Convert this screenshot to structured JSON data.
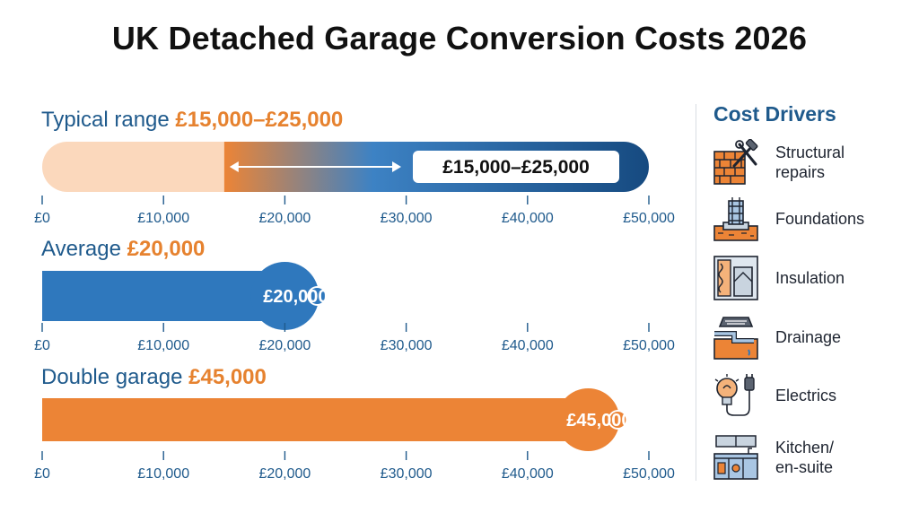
{
  "title": "UK Detached Garage Conversion Costs 2026",
  "colors": {
    "blue": "#2f78bd",
    "dark_blue": "#164a80",
    "orange": "#ec8436",
    "light_orange": "#fbd8bc",
    "text_blue": "#1f5a8c"
  },
  "chart_data": [
    {
      "type": "bar",
      "title_prefix": "Typical range",
      "title_value": "£15,000–£25,000",
      "range": [
        15000,
        25000
      ],
      "bar_extent": [
        0,
        50000
      ],
      "data_label": "£15,000–£25,000",
      "xlim": [
        0,
        50000
      ],
      "ticks": [
        0,
        10000,
        20000,
        30000,
        40000,
        50000
      ],
      "tick_labels": [
        "£0",
        "£10,000",
        "£20,000",
        "£30,000",
        "£40,000",
        "£50,000"
      ]
    },
    {
      "type": "bar",
      "title_prefix": "Average",
      "title_value": "£20,000",
      "value": 20000,
      "data_label": "£20,000",
      "xlim": [
        0,
        50000
      ],
      "ticks": [
        0,
        10000,
        20000,
        30000,
        40000,
        50000
      ],
      "tick_labels": [
        "£0",
        "£10,000",
        "£20,000",
        "£30,000",
        "£40,000",
        "£50,000"
      ]
    },
    {
      "type": "bar",
      "title_prefix": "Double garage",
      "title_value": "£45,000",
      "value": 45000,
      "data_label": "£45,000",
      "xlim": [
        0,
        50000
      ],
      "ticks": [
        0,
        10000,
        20000,
        30000,
        40000,
        50000
      ],
      "tick_labels": [
        "£0",
        "£10,000",
        "£20,000",
        "£30,000",
        "£40,000",
        "£50,000"
      ]
    }
  ],
  "drivers": {
    "title": "Cost Drivers",
    "items": [
      {
        "label": "Structural\nrepairs",
        "icon": "brick-wall-tools-icon"
      },
      {
        "label": "Foundations",
        "icon": "foundation-icon"
      },
      {
        "label": "Insulation",
        "icon": "insulation-icon"
      },
      {
        "label": "Drainage",
        "icon": "drainage-icon"
      },
      {
        "label": "Electrics",
        "icon": "lightbulb-plug-icon"
      },
      {
        "label": "Kitchen/\nen-suite",
        "icon": "kitchen-icon"
      }
    ]
  }
}
